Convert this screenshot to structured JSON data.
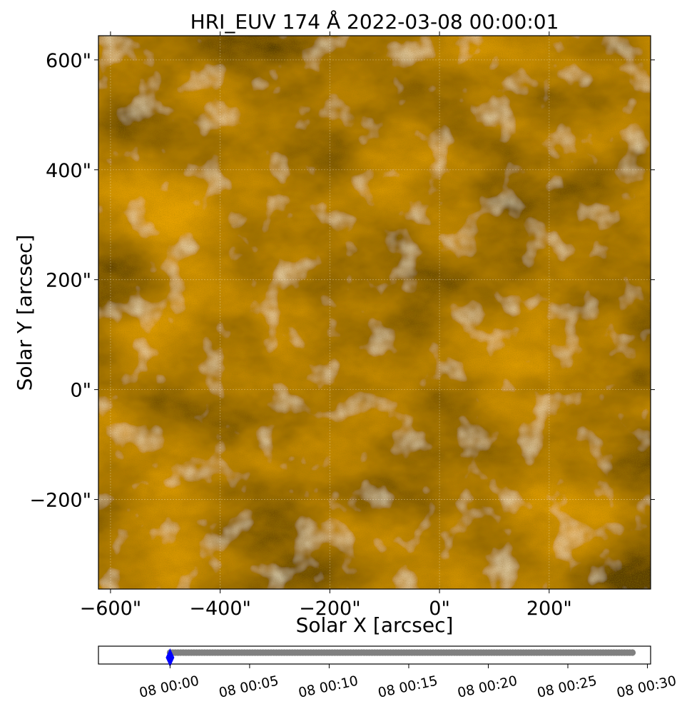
{
  "chart_data": {
    "type": "heatmap",
    "title": "HRI_EUV 174 Å 2022-03-08 00:00:01",
    "instrument": "HRI_EUV",
    "wavelength": "174 Å",
    "observation_time": "2022-03-08 00:00:01",
    "xlabel": "Solar X [arcsec]",
    "ylabel": "Solar Y [arcsec]",
    "xlim": [
      -622,
      385
    ],
    "ylim": [
      -363,
      644
    ],
    "x_ticks": [
      {
        "value": -600,
        "label": "−600\""
      },
      {
        "value": -400,
        "label": "−400\""
      },
      {
        "value": -200,
        "label": "−200\""
      },
      {
        "value": 0,
        "label": "0\""
      },
      {
        "value": 200,
        "label": "200\""
      }
    ],
    "y_ticks": [
      {
        "value": -200,
        "label": "−200\""
      },
      {
        "value": 0,
        "label": "0\""
      },
      {
        "value": 200,
        "label": "200\""
      },
      {
        "value": 400,
        "label": "400\""
      },
      {
        "value": 600,
        "label": "600\""
      }
    ],
    "colormap": "solar orbiterhri_euv174",
    "grid": true,
    "timeline": {
      "type": "scatter",
      "xlim_minutes": [
        -4.5,
        30.2
      ],
      "ticks": [
        {
          "value": 0,
          "label": "08 00:00"
        },
        {
          "value": 5,
          "label": "08 00:05"
        },
        {
          "value": 10,
          "label": "08 00:10"
        },
        {
          "value": 15,
          "label": "08 00:15"
        },
        {
          "value": 20,
          "label": "08 00:20"
        },
        {
          "value": 25,
          "label": "08 00:25"
        },
        {
          "value": 30,
          "label": "08 00:30"
        }
      ],
      "frames": {
        "start_minute": 0.0,
        "end_minute": 29.2,
        "step_minutes": 0.167
      },
      "current_minute": 0.0,
      "point_color": "#808080",
      "marker_color": "#0000ff"
    }
  }
}
